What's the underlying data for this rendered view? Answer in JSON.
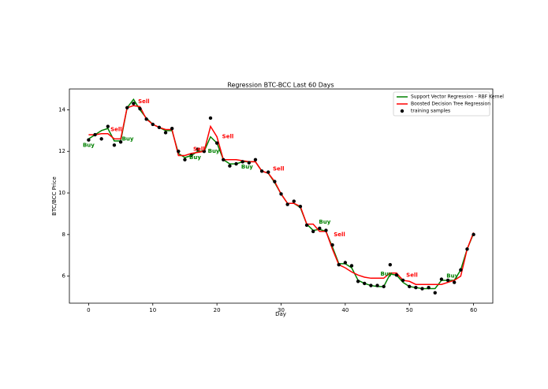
{
  "chart_data": {
    "type": "line",
    "title": "Regression BTC-BCC Last 60 Days",
    "x_label": "Day",
    "y_label": "BTC/BCC Price",
    "x": [
      0,
      1,
      2,
      3,
      4,
      5,
      6,
      7,
      8,
      9,
      10,
      11,
      12,
      13,
      14,
      15,
      16,
      17,
      18,
      19,
      20,
      21,
      22,
      23,
      24,
      25,
      26,
      27,
      28,
      29,
      30,
      31,
      32,
      33,
      34,
      35,
      36,
      37,
      38,
      39,
      40,
      41,
      42,
      43,
      44,
      45,
      46,
      47,
      48,
      49,
      50,
      51,
      52,
      53,
      54,
      55,
      56,
      57,
      58,
      59,
      60
    ],
    "series": [
      {
        "name": "Support Vector Regression - RBF Kernel",
        "color": "#008000",
        "kind": "line",
        "values": [
          12.6,
          12.8,
          13.0,
          13.1,
          12.5,
          12.5,
          14.1,
          14.5,
          14.0,
          13.6,
          13.3,
          13.15,
          13.0,
          13.0,
          11.9,
          11.7,
          11.8,
          12.0,
          12.0,
          12.7,
          12.4,
          11.6,
          11.4,
          11.4,
          11.5,
          11.5,
          11.5,
          11.05,
          10.95,
          10.5,
          9.95,
          9.5,
          9.5,
          9.3,
          8.5,
          8.2,
          8.25,
          8.15,
          7.4,
          6.6,
          6.6,
          6.4,
          5.8,
          5.65,
          5.55,
          5.5,
          5.5,
          6.1,
          6.05,
          5.7,
          5.5,
          5.45,
          5.4,
          5.4,
          5.4,
          5.8,
          5.8,
          5.8,
          6.3,
          7.3,
          8.05
        ]
      },
      {
        "name": "Boosted Decision Tree Regression",
        "color": "#ff0000",
        "kind": "line",
        "values": [
          12.8,
          12.8,
          12.85,
          12.85,
          12.6,
          12.6,
          14.1,
          14.2,
          14.15,
          13.55,
          13.3,
          13.15,
          13.05,
          13.05,
          11.8,
          11.8,
          11.9,
          11.95,
          12.0,
          13.2,
          12.7,
          11.6,
          11.6,
          11.6,
          11.55,
          11.5,
          11.5,
          11.05,
          10.95,
          10.55,
          9.95,
          9.5,
          9.5,
          9.35,
          8.5,
          8.5,
          8.15,
          8.15,
          7.3,
          6.55,
          6.4,
          6.2,
          6.05,
          5.95,
          5.9,
          5.9,
          5.9,
          6.15,
          6.15,
          5.8,
          5.75,
          5.6,
          5.6,
          5.6,
          5.6,
          5.6,
          5.7,
          5.8,
          6.0,
          7.3,
          8.1
        ]
      },
      {
        "name": "training samples",
        "color": "#000000",
        "kind": "scatter",
        "values": [
          12.55,
          12.8,
          12.6,
          13.2,
          12.3,
          12.45,
          14.1,
          14.3,
          14.05,
          13.55,
          13.3,
          13.15,
          12.9,
          13.1,
          12.0,
          11.6,
          11.8,
          12.1,
          12.0,
          13.6,
          12.4,
          11.6,
          11.3,
          11.4,
          11.5,
          11.45,
          11.6,
          11.05,
          11.0,
          10.55,
          9.95,
          9.45,
          9.6,
          9.35,
          8.45,
          8.15,
          8.3,
          8.2,
          7.5,
          6.55,
          6.65,
          6.5,
          5.75,
          5.65,
          5.55,
          5.55,
          5.5,
          6.55,
          6.05,
          5.8,
          5.5,
          5.45,
          5.4,
          5.45,
          5.2,
          5.85,
          5.8,
          5.7,
          6.3,
          7.3,
          8.0
        ]
      }
    ],
    "annotations": [
      {
        "text": "Buy",
        "x": 0,
        "y": 12.3,
        "color": "#008000"
      },
      {
        "text": "Sell",
        "x": 4.3,
        "y": 13.05,
        "color": "#ff0000"
      },
      {
        "text": "Buy",
        "x": 6.1,
        "y": 12.6,
        "color": "#008000"
      },
      {
        "text": "Sell",
        "x": 8.6,
        "y": 14.4,
        "color": "#ff0000"
      },
      {
        "text": "Buy",
        "x": 16.6,
        "y": 11.7,
        "color": "#008000"
      },
      {
        "text": "Sell",
        "x": 17.2,
        "y": 12.1,
        "color": "#ff0000"
      },
      {
        "text": "Buy",
        "x": 19.5,
        "y": 12.0,
        "color": "#008000"
      },
      {
        "text": "Sell",
        "x": 21.7,
        "y": 12.7,
        "color": "#ff0000"
      },
      {
        "text": "Buy",
        "x": 24.7,
        "y": 11.25,
        "color": "#008000"
      },
      {
        "text": "Sell",
        "x": 29.6,
        "y": 11.15,
        "color": "#ff0000"
      },
      {
        "text": "Buy",
        "x": 36.8,
        "y": 8.6,
        "color": "#008000"
      },
      {
        "text": "Sell",
        "x": 39.1,
        "y": 8.0,
        "color": "#ff0000"
      },
      {
        "text": "Buy",
        "x": 46.4,
        "y": 6.1,
        "color": "#008000"
      },
      {
        "text": "Sell",
        "x": 50.4,
        "y": 6.05,
        "color": "#ff0000"
      },
      {
        "text": "Buy",
        "x": 56.7,
        "y": 6.0,
        "color": "#008000"
      }
    ],
    "xlim": [
      -3,
      63
    ],
    "ylim": [
      4.7,
      15.0
    ],
    "xticks": [
      0,
      10,
      20,
      30,
      40,
      50,
      60
    ],
    "yticks": [
      6,
      8,
      10,
      12,
      14
    ],
    "legend": "upper right",
    "grid": false
  }
}
